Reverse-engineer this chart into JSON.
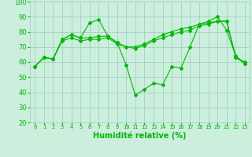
{
  "line1": [
    57,
    63,
    62,
    75,
    78,
    76,
    86,
    88,
    77,
    73,
    58,
    38,
    42,
    46,
    45,
    57,
    56,
    70,
    85,
    87,
    90,
    81,
    64,
    59
  ],
  "line2": [
    57,
    63,
    62,
    75,
    78,
    76,
    76,
    77,
    77,
    73,
    70,
    70,
    72,
    75,
    78,
    80,
    82,
    83,
    85,
    86,
    87,
    87,
    63,
    60
  ],
  "line3": [
    57,
    63,
    62,
    74,
    76,
    74,
    75,
    75,
    76,
    72,
    70,
    69,
    71,
    74,
    76,
    78,
    80,
    81,
    84,
    85,
    87,
    87,
    63,
    59
  ],
  "x": [
    0,
    1,
    2,
    3,
    4,
    5,
    6,
    7,
    8,
    9,
    10,
    11,
    12,
    13,
    14,
    15,
    16,
    17,
    18,
    19,
    20,
    21,
    22,
    23
  ],
  "xtick_labels": [
    "0",
    "1",
    "2",
    "3",
    "4",
    "5",
    "6",
    "7",
    "8",
    "9",
    "10",
    "11",
    "12",
    "13",
    "14",
    "15",
    "16",
    "17",
    "18",
    "19",
    "20",
    "21",
    "22",
    "23"
  ],
  "line_color": "#00bb00",
  "bg_color": "#cceedd",
  "grid_color": "#99ccbb",
  "xlabel": "Humidité relative (%)",
  "ylim": [
    20,
    100
  ],
  "yticks": [
    20,
    30,
    40,
    50,
    60,
    70,
    80,
    90,
    100
  ],
  "ytick_labels": [
    "20",
    "30",
    "40",
    "50",
    "60",
    "70",
    "80",
    "90",
    "100"
  ],
  "xlabel_fontsize": 7,
  "xtick_fontsize": 5,
  "ytick_fontsize": 6
}
